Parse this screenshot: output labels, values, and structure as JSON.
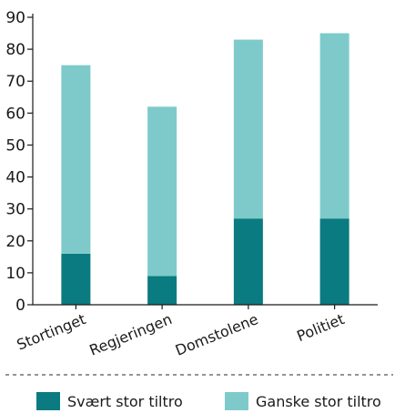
{
  "chart_data": {
    "type": "bar",
    "stacked": true,
    "categories": [
      "Stortinget",
      "Regjeringen",
      "Domstolene",
      "Politiet"
    ],
    "series": [
      {
        "name": "Svært stor tiltro",
        "values": [
          16,
          9,
          27,
          27
        ],
        "color": "#0a7b80"
      },
      {
        "name": "Ganske stor tiltro",
        "values": [
          59,
          53,
          56,
          58
        ],
        "color": "#7ecaca"
      }
    ],
    "ylim": [
      0,
      90
    ],
    "yticks": [
      0,
      10,
      20,
      30,
      40,
      50,
      60,
      70,
      80,
      90
    ],
    "grid": false,
    "legend_position": "bottom",
    "title": "",
    "xlabel": "",
    "ylabel": ""
  }
}
